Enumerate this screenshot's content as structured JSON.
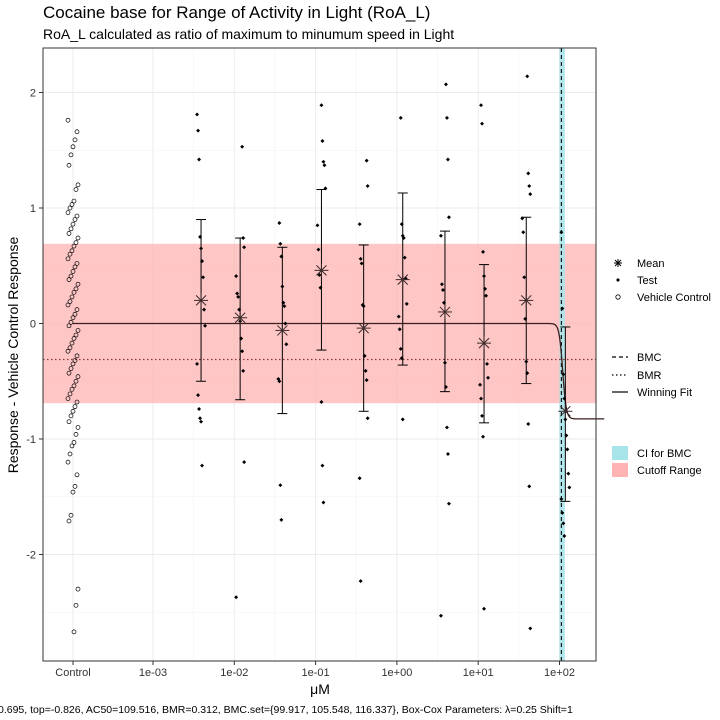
{
  "chart_data": {
    "type": "scatter",
    "title": "Cocaine base for Range of Activity in Light (RoA_L)",
    "subtitle": "RoA_L calculated as ratio of maximum to minumum speed in Light",
    "xlabel": "μM",
    "ylabel": "Response - Vehicle Control Response",
    "footer": "0.695, top=-0.826, AC50=109.516, BMR=0.312, BMC.set={99.917, 105.548, 116.337}, Box-Cox Parameters: λ=0.25 Shift=1",
    "x_scale": "log10",
    "x_ticks": [
      "Control",
      "1e-03",
      "1e-02",
      "1e-01",
      "1e+00",
      "1e+01",
      "1e+02"
    ],
    "y_ticks": [
      "2",
      "1",
      "0",
      "-1",
      "-2"
    ],
    "ylim": [
      -2.95,
      2.35
    ],
    "grid": true,
    "legend_placement": "right",
    "cutoff_range": [
      -0.69,
      0.69
    ],
    "bmr_line": -0.312,
    "bmc": 105.548,
    "bmc_ci": [
      99.917,
      116.337
    ],
    "winning_fit": {
      "model": "hill",
      "top": -0.826,
      "ac50": 109.516,
      "n": 20
    },
    "means": [
      {
        "x": 0.0039,
        "mean": 0.2,
        "lower": -0.5,
        "upper": 0.9
      },
      {
        "x": 0.0118,
        "mean": 0.05,
        "lower": -0.66,
        "upper": 0.74
      },
      {
        "x": 0.039,
        "mean": -0.06,
        "lower": -0.78,
        "upper": 0.66
      },
      {
        "x": 0.118,
        "mean": 0.46,
        "lower": -0.23,
        "upper": 1.16
      },
      {
        "x": 0.39,
        "mean": -0.04,
        "lower": -0.76,
        "upper": 0.68
      },
      {
        "x": 1.18,
        "mean": 0.38,
        "lower": -0.36,
        "upper": 1.13
      },
      {
        "x": 3.9,
        "mean": 0.1,
        "lower": -0.59,
        "upper": 0.8
      },
      {
        "x": 11.8,
        "mean": -0.17,
        "lower": -0.86,
        "upper": 0.51
      },
      {
        "x": 39,
        "mean": 0.2,
        "lower": -0.52,
        "upper": 0.92
      },
      {
        "x": 118,
        "mean": -0.76,
        "lower": -1.54,
        "upper": -0.03
      }
    ],
    "test_points": [
      {
        "x": 0.0039,
        "y": 1.81
      },
      {
        "x": 0.0039,
        "y": 1.67
      },
      {
        "x": 0.0039,
        "y": 1.42
      },
      {
        "x": 0.0039,
        "y": 0.75
      },
      {
        "x": 0.0039,
        "y": 0.65
      },
      {
        "x": 0.0039,
        "y": 0.54
      },
      {
        "x": 0.0039,
        "y": 0.4
      },
      {
        "x": 0.0039,
        "y": 0.12
      },
      {
        "x": 0.0039,
        "y": -0.02
      },
      {
        "x": 0.0039,
        "y": -0.35
      },
      {
        "x": 0.0039,
        "y": -0.62
      },
      {
        "x": 0.0039,
        "y": -0.74
      },
      {
        "x": 0.0039,
        "y": -0.82
      },
      {
        "x": 0.0039,
        "y": -0.85
      },
      {
        "x": 0.0039,
        "y": -1.23
      },
      {
        "x": 0.0118,
        "y": 1.53
      },
      {
        "x": 0.0118,
        "y": 0.74
      },
      {
        "x": 0.0118,
        "y": 0.66
      },
      {
        "x": 0.0118,
        "y": 0.41
      },
      {
        "x": 0.0118,
        "y": 0.26
      },
      {
        "x": 0.0118,
        "y": 0.23
      },
      {
        "x": 0.0118,
        "y": 0.12
      },
      {
        "x": 0.0118,
        "y": 0.02
      },
      {
        "x": 0.0118,
        "y": -0.13
      },
      {
        "x": 0.0118,
        "y": -0.24
      },
      {
        "x": 0.0118,
        "y": -0.41
      },
      {
        "x": 0.0118,
        "y": -1.2
      },
      {
        "x": 0.0118,
        "y": -2.37
      },
      {
        "x": 0.039,
        "y": 0.87
      },
      {
        "x": 0.039,
        "y": 0.69
      },
      {
        "x": 0.039,
        "y": 0.58
      },
      {
        "x": 0.039,
        "y": 0.32
      },
      {
        "x": 0.039,
        "y": 0.18
      },
      {
        "x": 0.039,
        "y": 0.15
      },
      {
        "x": 0.039,
        "y": 0.0
      },
      {
        "x": 0.039,
        "y": -0.18
      },
      {
        "x": 0.039,
        "y": -0.48
      },
      {
        "x": 0.039,
        "y": -0.5
      },
      {
        "x": 0.039,
        "y": -1.4
      },
      {
        "x": 0.039,
        "y": -1.7
      },
      {
        "x": 0.118,
        "y": 1.89
      },
      {
        "x": 0.118,
        "y": 1.58
      },
      {
        "x": 0.118,
        "y": 1.4
      },
      {
        "x": 0.118,
        "y": 1.37
      },
      {
        "x": 0.118,
        "y": 1.17
      },
      {
        "x": 0.118,
        "y": 0.85
      },
      {
        "x": 0.118,
        "y": 0.64
      },
      {
        "x": 0.118,
        "y": 0.42
      },
      {
        "x": 0.118,
        "y": 0.31
      },
      {
        "x": 0.118,
        "y": -0.68
      },
      {
        "x": 0.118,
        "y": -1.23
      },
      {
        "x": 0.118,
        "y": -1.55
      },
      {
        "x": 0.39,
        "y": 1.41
      },
      {
        "x": 0.39,
        "y": 1.19
      },
      {
        "x": 0.39,
        "y": 0.86
      },
      {
        "x": 0.39,
        "y": 0.56
      },
      {
        "x": 0.39,
        "y": 0.52
      },
      {
        "x": 0.39,
        "y": 0.16
      },
      {
        "x": 0.39,
        "y": 0.15
      },
      {
        "x": 0.39,
        "y": -0.28
      },
      {
        "x": 0.39,
        "y": -0.41
      },
      {
        "x": 0.39,
        "y": -0.49
      },
      {
        "x": 0.39,
        "y": -0.82
      },
      {
        "x": 0.39,
        "y": -1.34
      },
      {
        "x": 0.39,
        "y": -2.23
      },
      {
        "x": 1.18,
        "y": 1.78
      },
      {
        "x": 1.18,
        "y": 0.86
      },
      {
        "x": 1.18,
        "y": 0.76
      },
      {
        "x": 1.18,
        "y": 0.74
      },
      {
        "x": 1.18,
        "y": 0.57
      },
      {
        "x": 1.18,
        "y": 0.39
      },
      {
        "x": 1.18,
        "y": 0.17
      },
      {
        "x": 1.18,
        "y": 0.06
      },
      {
        "x": 1.18,
        "y": -0.05
      },
      {
        "x": 1.18,
        "y": -0.22
      },
      {
        "x": 1.18,
        "y": -0.3
      },
      {
        "x": 1.18,
        "y": -0.83
      },
      {
        "x": 3.9,
        "y": 2.07
      },
      {
        "x": 3.9,
        "y": 1.78
      },
      {
        "x": 3.9,
        "y": 1.42
      },
      {
        "x": 3.9,
        "y": 0.92
      },
      {
        "x": 3.9,
        "y": 0.76
      },
      {
        "x": 3.9,
        "y": 0.34
      },
      {
        "x": 3.9,
        "y": 0.29
      },
      {
        "x": 3.9,
        "y": 0.18
      },
      {
        "x": 3.9,
        "y": -0.34
      },
      {
        "x": 3.9,
        "y": -0.55
      },
      {
        "x": 3.9,
        "y": -0.9
      },
      {
        "x": 3.9,
        "y": -1.13
      },
      {
        "x": 3.9,
        "y": -1.56
      },
      {
        "x": 3.9,
        "y": -2.53
      },
      {
        "x": 11.8,
        "y": 1.89
      },
      {
        "x": 11.8,
        "y": 1.73
      },
      {
        "x": 11.8,
        "y": 0.62
      },
      {
        "x": 11.8,
        "y": 0.41
      },
      {
        "x": 11.8,
        "y": 0.3
      },
      {
        "x": 11.8,
        "y": 0.24
      },
      {
        "x": 11.8,
        "y": -0.35
      },
      {
        "x": 11.8,
        "y": -0.47
      },
      {
        "x": 11.8,
        "y": -0.53
      },
      {
        "x": 11.8,
        "y": -0.65
      },
      {
        "x": 11.8,
        "y": -0.8
      },
      {
        "x": 11.8,
        "y": -0.98
      },
      {
        "x": 11.8,
        "y": -2.47
      },
      {
        "x": 39,
        "y": 2.14
      },
      {
        "x": 39,
        "y": 1.3
      },
      {
        "x": 39,
        "y": 1.19
      },
      {
        "x": 39,
        "y": 1.12
      },
      {
        "x": 39,
        "y": 0.91
      },
      {
        "x": 39,
        "y": 0.79
      },
      {
        "x": 39,
        "y": 0.4
      },
      {
        "x": 39,
        "y": 0.04
      },
      {
        "x": 39,
        "y": -0.33
      },
      {
        "x": 39,
        "y": -0.43
      },
      {
        "x": 39,
        "y": -0.87
      },
      {
        "x": 39,
        "y": -1.41
      },
      {
        "x": 39,
        "y": -2.64
      },
      {
        "x": 118,
        "y": 0.79
      },
      {
        "x": 118,
        "y": 0.13
      },
      {
        "x": 118,
        "y": -0.44
      },
      {
        "x": 118,
        "y": -0.65
      },
      {
        "x": 118,
        "y": -0.83
      },
      {
        "x": 118,
        "y": -0.97
      },
      {
        "x": 118,
        "y": -1.09
      },
      {
        "x": 118,
        "y": -1.3
      },
      {
        "x": 118,
        "y": -1.42
      },
      {
        "x": 118,
        "y": -1.52
      },
      {
        "x": 118,
        "y": -1.64
      },
      {
        "x": 118,
        "y": -1.73
      },
      {
        "x": 118,
        "y": -1.84
      }
    ],
    "vehicle_control_points": [
      1.76,
      1.66,
      1.59,
      1.53,
      1.46,
      1.37,
      1.2,
      1.16,
      1.06,
      1.03,
      1.0,
      0.96,
      0.93,
      0.9,
      0.86,
      0.82,
      0.78,
      0.74,
      0.7,
      0.67,
      0.63,
      0.6,
      0.56,
      0.52,
      0.49,
      0.45,
      0.41,
      0.38,
      0.34,
      0.3,
      0.27,
      0.23,
      0.19,
      0.16,
      0.12,
      0.08,
      0.05,
      0.01,
      -0.02,
      -0.06,
      -0.1,
      -0.13,
      -0.17,
      -0.21,
      -0.24,
      -0.28,
      -0.32,
      -0.35,
      -0.39,
      -0.43,
      -0.46,
      -0.5,
      -0.54,
      -0.57,
      -0.61,
      -0.65,
      -0.68,
      -0.72,
      -0.76,
      -0.8,
      -0.85,
      -0.9,
      -0.96,
      -1.03,
      -1.06,
      -1.13,
      -1.2,
      -1.31,
      -1.41,
      -1.46,
      -1.66,
      -1.71,
      -2.3,
      -2.44,
      -2.67
    ],
    "legend": {
      "shapes": [
        "Mean",
        "Test",
        "Vehicle Control"
      ],
      "lines": [
        "BMC",
        "BMR",
        "Winning Fit"
      ],
      "fills": [
        "CI for BMC",
        "Cutoff Range"
      ]
    },
    "colors": {
      "cutoff_fill": "#ffb3b3",
      "ci_fill": "#a7e4ea",
      "bmc_line": "#1a1a1a",
      "panel_border": "#333333",
      "grid": "#ebebeb"
    }
  }
}
